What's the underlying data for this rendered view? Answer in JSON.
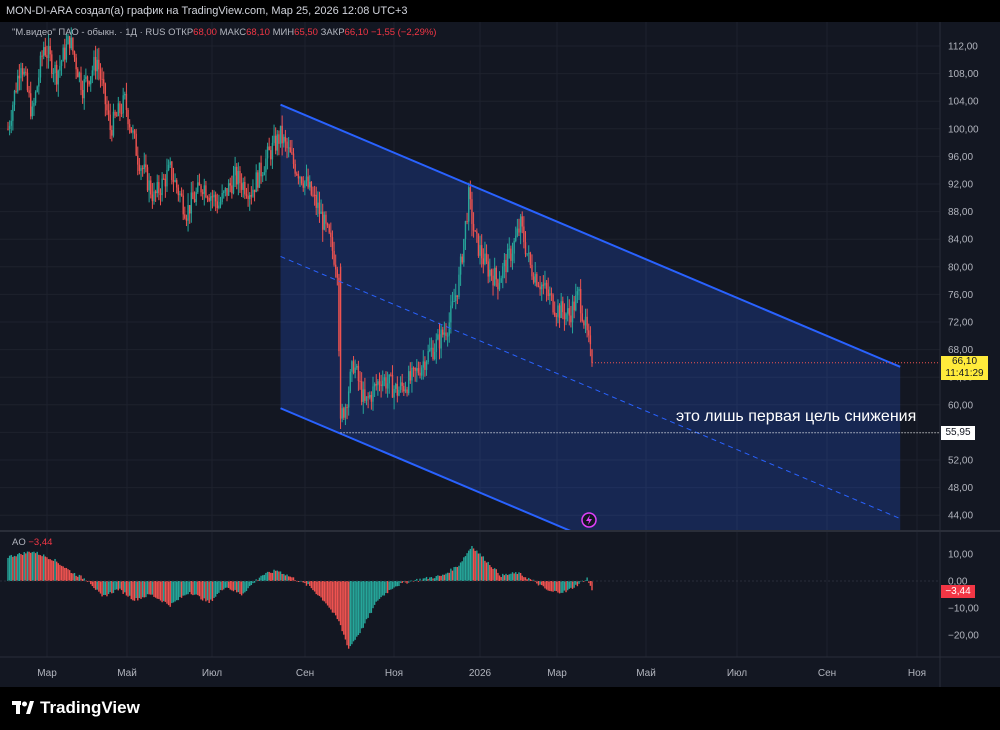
{
  "header": {
    "caption": "MON-DI-ARA создал(а) график на TradingView.com, Мар 25, 2026 12:08 UTC+3"
  },
  "legend": {
    "symbol": "\"М.видео\" ПАО - обыкн. · 1Д · RUS",
    "open_label": "ОТКР",
    "open": "68,00",
    "high_label": "МАКС",
    "high": "68,10",
    "low_label": "МИН",
    "low": "65,50",
    "close_label": "ЗАКР",
    "close": "66,10",
    "change": "−1,55 (−2,29%)"
  },
  "price_tag": {
    "price": "66,10",
    "time": "11:41:29"
  },
  "level_tag": "55,95",
  "annotation": "это лишь первая цель снижения",
  "ao": {
    "label": "AO",
    "value": "−3,44",
    "tag": "−3,44"
  },
  "brand": "TradingView",
  "colors": {
    "up": "#26a69a",
    "down": "#ef5350",
    "channel": "#2962ff",
    "bg": "#131722",
    "highlight": "#ffeb3b"
  },
  "chart_data": [
    {
      "type": "candlestick",
      "title": "\"М.видео\" ПАО - обыкн.",
      "x_ticks": [
        "Мар",
        "Май",
        "Июл",
        "Сен",
        "Ноя",
        "2026",
        "Мар",
        "Май",
        "Июл",
        "Сен",
        "Ноя"
      ],
      "y_ticks": [
        "112,00",
        "108,00",
        "104,00",
        "100,00",
        "96,00",
        "92,00",
        "88,00",
        "84,00",
        "80,00",
        "76,00",
        "72,00",
        "68,00",
        "64,00",
        "60,00",
        "56,00",
        "52,00",
        "48,00",
        "44,00"
      ],
      "ylim": [
        42,
        114
      ],
      "price_anchors": [
        {
          "t": 0,
          "p": 100
        },
        {
          "t": 8,
          "p": 110
        },
        {
          "t": 15,
          "p": 102
        },
        {
          "t": 22,
          "p": 112
        },
        {
          "t": 30,
          "p": 108
        },
        {
          "t": 38,
          "p": 113
        },
        {
          "t": 46,
          "p": 106
        },
        {
          "t": 55,
          "p": 110
        },
        {
          "t": 63,
          "p": 100
        },
        {
          "t": 72,
          "p": 104
        },
        {
          "t": 80,
          "p": 96
        },
        {
          "t": 90,
          "p": 90
        },
        {
          "t": 100,
          "p": 94
        },
        {
          "t": 110,
          "p": 88
        },
        {
          "t": 120,
          "p": 92
        },
        {
          "t": 130,
          "p": 89
        },
        {
          "t": 140,
          "p": 93
        },
        {
          "t": 150,
          "p": 91
        },
        {
          "t": 160,
          "p": 96
        },
        {
          "t": 168,
          "p": 99
        },
        {
          "t": 176,
          "p": 95
        },
        {
          "t": 184,
          "p": 92
        },
        {
          "t": 192,
          "p": 88
        },
        {
          "t": 198,
          "p": 84
        },
        {
          "t": 203,
          "p": 80
        },
        {
          "t": 205,
          "p": 58
        },
        {
          "t": 208,
          "p": 60
        },
        {
          "t": 213,
          "p": 66
        },
        {
          "t": 220,
          "p": 60
        },
        {
          "t": 230,
          "p": 64
        },
        {
          "t": 240,
          "p": 62
        },
        {
          "t": 250,
          "p": 64
        },
        {
          "t": 258,
          "p": 67
        },
        {
          "t": 265,
          "p": 69
        },
        {
          "t": 272,
          "p": 72
        },
        {
          "t": 278,
          "p": 78
        },
        {
          "t": 284,
          "p": 90
        },
        {
          "t": 288,
          "p": 84
        },
        {
          "t": 295,
          "p": 80
        },
        {
          "t": 302,
          "p": 78
        },
        {
          "t": 310,
          "p": 82
        },
        {
          "t": 316,
          "p": 86
        },
        {
          "t": 322,
          "p": 80
        },
        {
          "t": 330,
          "p": 77
        },
        {
          "t": 338,
          "p": 74
        },
        {
          "t": 346,
          "p": 73
        },
        {
          "t": 352,
          "p": 76
        },
        {
          "t": 357,
          "p": 70
        },
        {
          "t": 360,
          "p": 66.1
        }
      ],
      "channel": {
        "upper": [
          {
            "t": 168,
            "p": 103.5
          },
          {
            "t": 550,
            "p": 65.5
          }
        ],
        "lower": [
          {
            "t": 168,
            "p": 59.5
          },
          {
            "t": 550,
            "p": 21.5
          }
        ],
        "middle": [
          {
            "t": 168,
            "p": 81.5
          },
          {
            "t": 550,
            "p": 43.5
          }
        ]
      },
      "levels": [
        {
          "value": 55.95
        }
      ],
      "last": {
        "open": 68.0,
        "high": 68.1,
        "low": 65.5,
        "close": 66.1
      }
    },
    {
      "type": "bar",
      "title": "AO",
      "y_ticks": [
        "10,00",
        "0,00",
        "−10,00",
        "−20,00"
      ],
      "ylim": [
        -27,
        14
      ],
      "anchors": [
        {
          "t": 0,
          "v": 9
        },
        {
          "t": 15,
          "v": 11
        },
        {
          "t": 28,
          "v": 8
        },
        {
          "t": 40,
          "v": 3
        },
        {
          "t": 50,
          "v": 0
        },
        {
          "t": 58,
          "v": -6
        },
        {
          "t": 68,
          "v": -3
        },
        {
          "t": 78,
          "v": -7
        },
        {
          "t": 88,
          "v": -5
        },
        {
          "t": 100,
          "v": -9
        },
        {
          "t": 112,
          "v": -4
        },
        {
          "t": 124,
          "v": -8
        },
        {
          "t": 134,
          "v": -2
        },
        {
          "t": 144,
          "v": -5
        },
        {
          "t": 156,
          "v": 2
        },
        {
          "t": 166,
          "v": 4
        },
        {
          "t": 176,
          "v": 1
        },
        {
          "t": 186,
          "v": -2
        },
        {
          "t": 196,
          "v": -8
        },
        {
          "t": 204,
          "v": -15
        },
        {
          "t": 210,
          "v": -25
        },
        {
          "t": 218,
          "v": -18
        },
        {
          "t": 228,
          "v": -7
        },
        {
          "t": 238,
          "v": -2
        },
        {
          "t": 248,
          "v": 0
        },
        {
          "t": 258,
          "v": 1
        },
        {
          "t": 268,
          "v": 2
        },
        {
          "t": 278,
          "v": 6
        },
        {
          "t": 286,
          "v": 13
        },
        {
          "t": 294,
          "v": 8
        },
        {
          "t": 304,
          "v": 2
        },
        {
          "t": 314,
          "v": 3
        },
        {
          "t": 324,
          "v": 0
        },
        {
          "t": 334,
          "v": -4
        },
        {
          "t": 344,
          "v": -4
        },
        {
          "t": 352,
          "v": -1
        },
        {
          "t": 357,
          "v": 1
        },
        {
          "t": 360,
          "v": -3.44
        }
      ]
    }
  ]
}
